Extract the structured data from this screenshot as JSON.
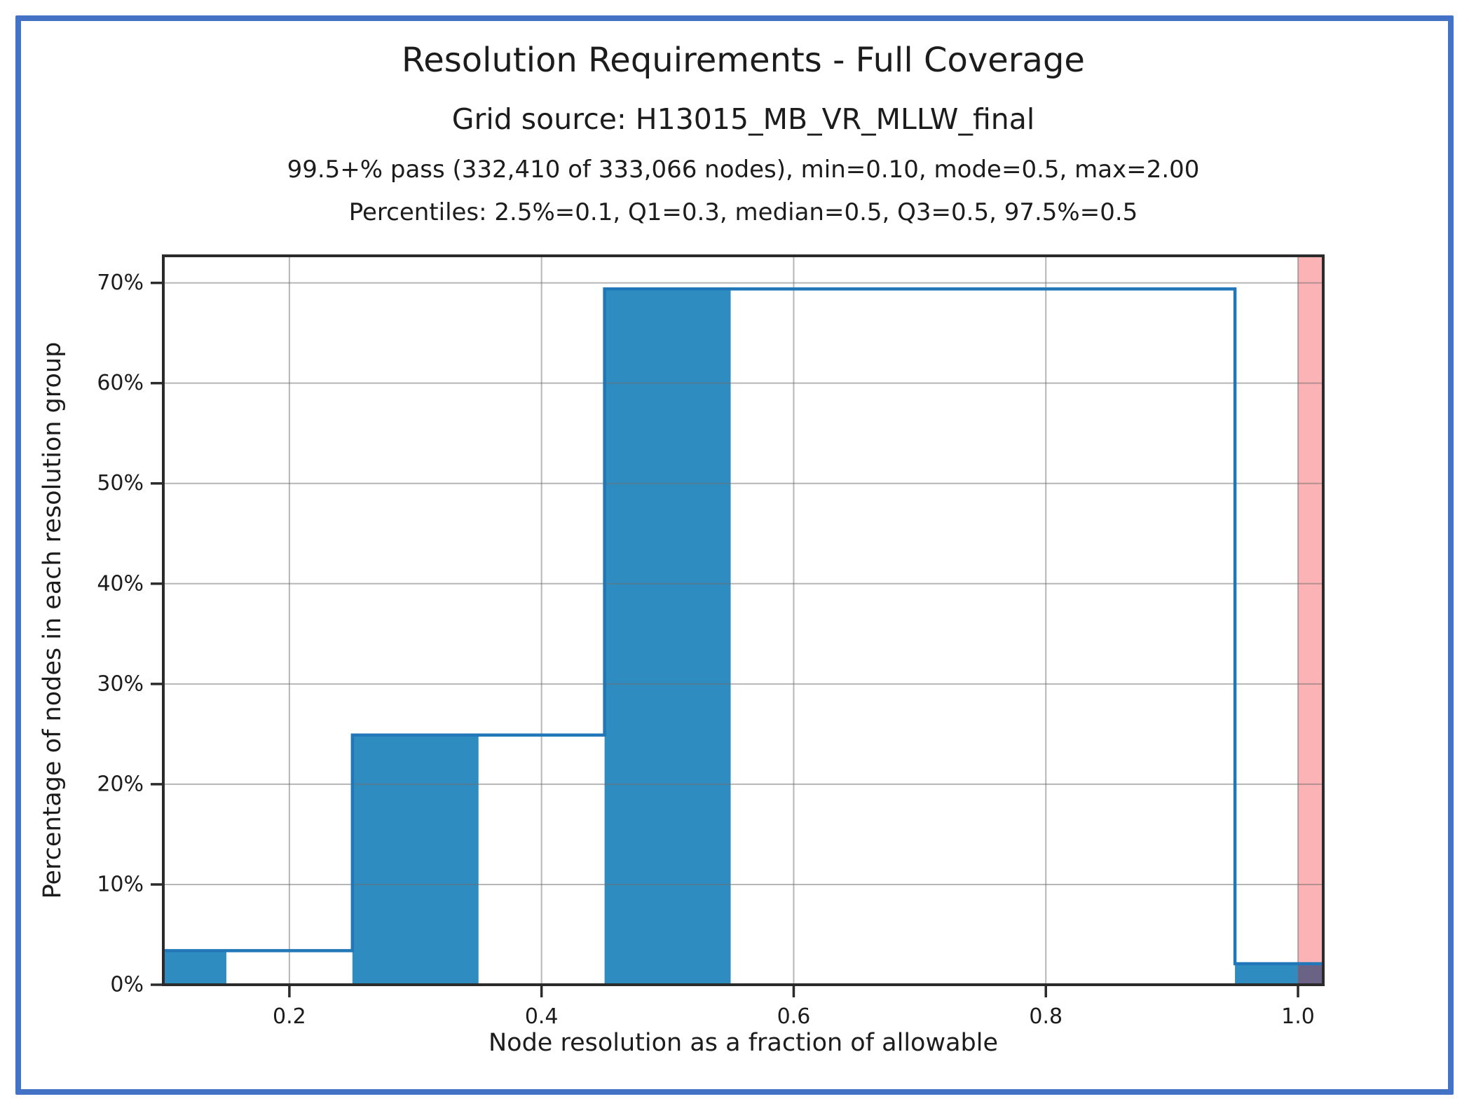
{
  "frame_color": "#4472c4",
  "header": {
    "title": "Resolution Requirements - Full Coverage",
    "subtitle": "Grid source: H13015_MB_VR_MLLW_final",
    "stats_line": "99.5+% pass (332,410 of 333,066 nodes), min=0.10, mode=0.5, max=2.00",
    "percentiles_line": "Percentiles: 2.5%=0.1, Q1=0.3, median=0.5, Q3=0.5, 97.5%=0.5"
  },
  "chart_data": {
    "type": "bar",
    "title": "Resolution Requirements - Full Coverage",
    "subtitle": "Grid source: H13015_MB_VR_MLLW_final",
    "xlabel": "Node resolution as a fraction of allowable",
    "ylabel": "Percentage of nodes in each resolution group",
    "xlim": [
      0.1,
      1.02
    ],
    "ylim": [
      0,
      72.7
    ],
    "x_ticks": [
      0.2,
      0.4,
      0.6,
      0.8,
      1.0
    ],
    "y_ticks": [
      0,
      10,
      20,
      30,
      40,
      50,
      60,
      70
    ],
    "y_tick_suffix": "%",
    "grid": true,
    "bars": [
      {
        "x0": 0.1,
        "x1": 0.15,
        "value": 3.4
      },
      {
        "x0": 0.25,
        "x1": 0.35,
        "value": 25.0
      },
      {
        "x0": 0.45,
        "x1": 0.55,
        "value": 69.5
      },
      {
        "x0": 0.95,
        "x1": 1.02,
        "value": 2.1
      }
    ],
    "step_line": [
      {
        "x0": 0.1,
        "x1": 0.25,
        "value": 3.4
      },
      {
        "x0": 0.25,
        "x1": 0.45,
        "value": 24.9
      },
      {
        "x0": 0.45,
        "x1": 0.95,
        "value": 69.4
      },
      {
        "x0": 0.95,
        "x1": 1.02,
        "value": 2.1
      }
    ],
    "fail_band": {
      "x0": 1.0,
      "x1": 1.02
    },
    "colors": {
      "bar_fill": "#2e8cc0",
      "step_line": "#2277b8",
      "fail_band": "#fbb3b5",
      "band_bar_overlap": "#6a6386",
      "grid": "#6e6e6e",
      "spine": "#2b2b2b",
      "text": "#1c1c1c"
    }
  }
}
